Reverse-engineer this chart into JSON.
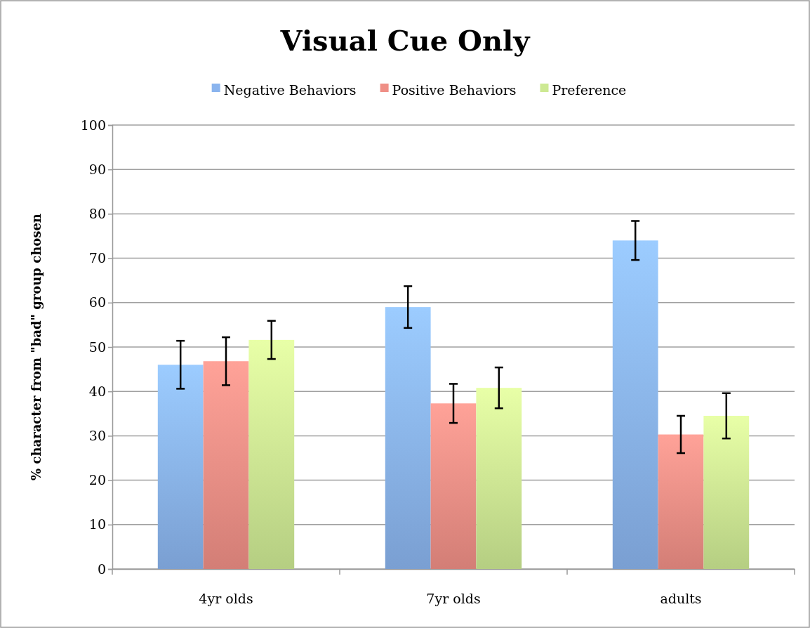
{
  "chart_data": {
    "type": "bar",
    "title": "Visual Cue Only",
    "ylabel": "% character from \"bad\" group chosen",
    "categories": [
      "4yr olds",
      "7yr olds",
      "adults"
    ],
    "series": [
      {
        "name": "Negative Behaviors",
        "color": "#8ab4ee",
        "values": [
          46,
          59,
          74
        ],
        "errors": [
          5.4,
          4.7,
          4.4
        ]
      },
      {
        "name": "Positive Behaviors",
        "color": "#ef8f86",
        "values": [
          46.8,
          37.3,
          30.3
        ],
        "errors": [
          5.4,
          4.4,
          4.2
        ]
      },
      {
        "name": "Preference",
        "color": "#cde993",
        "values": [
          51.6,
          40.8,
          34.5
        ],
        "errors": [
          4.3,
          4.6,
          5.1
        ]
      }
    ],
    "ylim": [
      0,
      100
    ],
    "yticks": [
      0,
      10,
      20,
      30,
      40,
      50,
      60,
      70,
      80,
      90,
      100
    ],
    "grid": "y",
    "legend": "top"
  }
}
